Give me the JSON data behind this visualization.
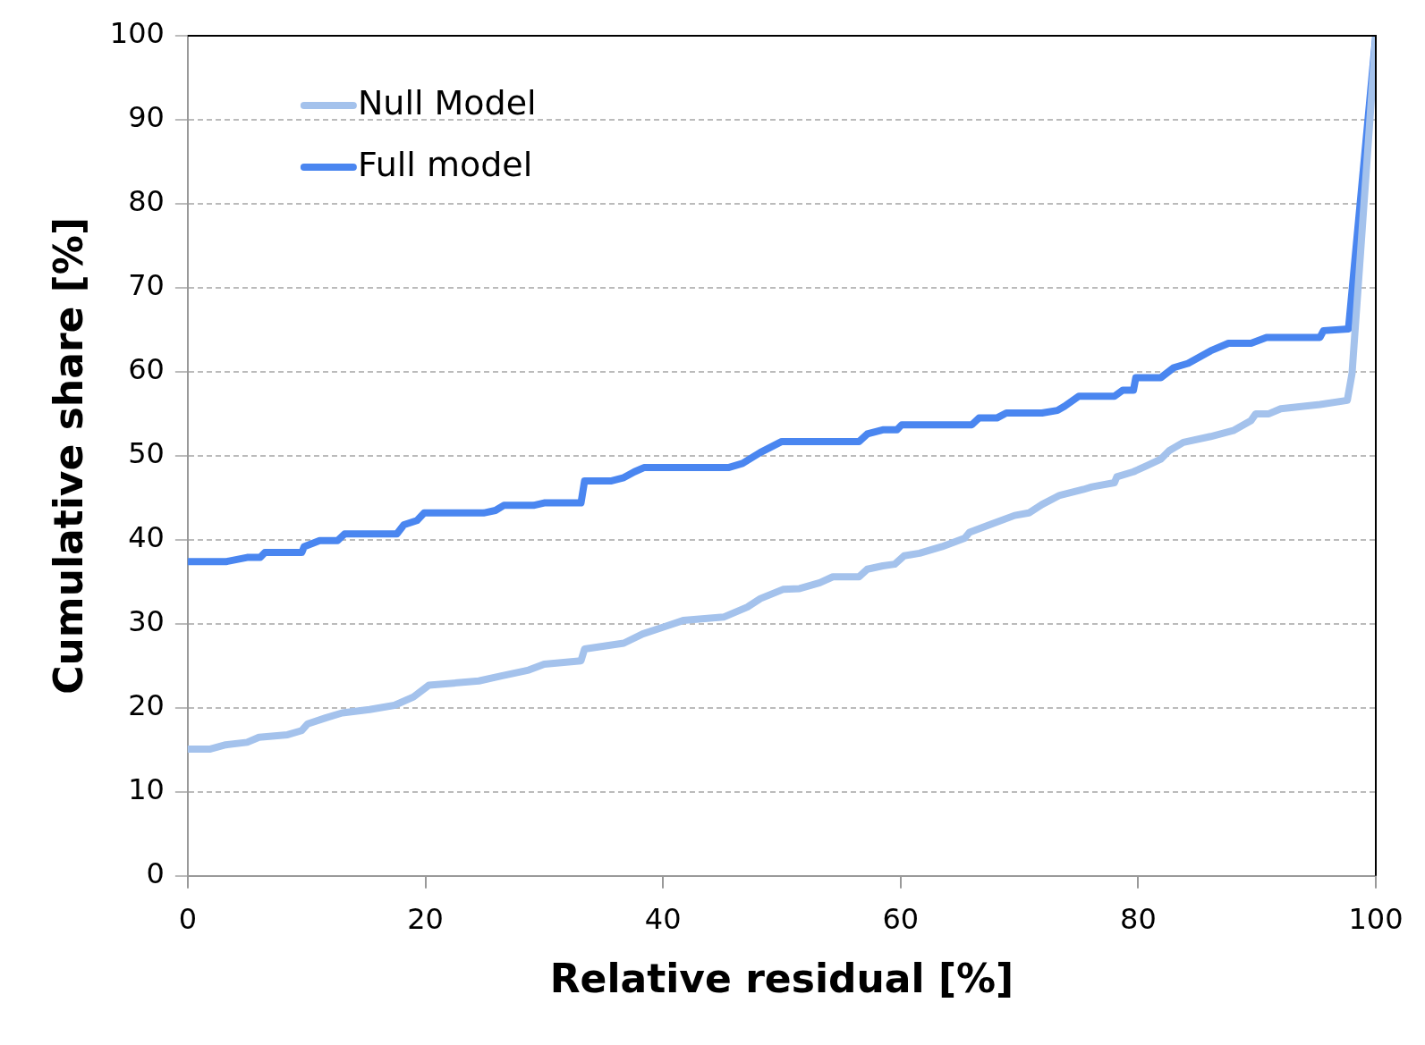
{
  "chart_data": {
    "type": "line",
    "xlabel": "Relative residual [%]",
    "ylabel": "Cumulative share [%]",
    "xlim": [
      0,
      100
    ],
    "xticks": [
      0,
      20,
      40,
      60,
      80,
      100
    ],
    "ylim": [
      0,
      100
    ],
    "yticks": [
      0,
      10,
      20,
      30,
      40,
      50,
      60,
      70,
      80,
      90,
      100
    ],
    "grid": "y",
    "legend": "top left",
    "marker": "none",
    "line_style": "solid",
    "series": [
      {
        "name": "Null Model",
        "color": "#a4c2ec",
        "x": [
          0,
          1.9,
          3.2,
          5,
          6,
          8.4,
          9.6,
          10.1,
          11.6,
          13,
          15.3,
          17.4,
          19,
          20.3,
          24.5,
          26.4,
          28.7,
          30,
          33.1,
          33.4,
          36.7,
          38.3,
          40.2,
          41.7,
          45.1,
          47.1,
          48.2,
          50.1,
          51.5,
          53.2,
          54.3,
          56.5,
          57.2,
          58.5,
          59.5,
          60.3,
          61.6,
          63.5,
          65.4,
          65.8,
          67.7,
          69.6,
          70.8,
          71.9,
          73.4,
          75.4,
          76.1,
          78,
          78.2,
          79.6,
          80.7,
          81.9,
          82.6,
          83.8,
          86.1,
          88,
          89.5,
          89.9,
          91,
          92,
          95.3,
          97.6,
          98,
          100
        ],
        "values": [
          15.1,
          15.1,
          15.6,
          15.9,
          16.5,
          16.8,
          17.3,
          18.1,
          18.8,
          19.4,
          19.8,
          20.3,
          21.3,
          22.7,
          23.2,
          23.8,
          24.5,
          25.2,
          25.6,
          27,
          27.7,
          28.8,
          29.7,
          30.4,
          30.8,
          32,
          33,
          34.1,
          34.2,
          34.9,
          35.6,
          35.6,
          36.5,
          36.9,
          37.1,
          38.1,
          38.4,
          39.2,
          40.2,
          40.9,
          41.9,
          42.9,
          43.2,
          44.2,
          45.3,
          46,
          46.3,
          46.8,
          47.5,
          48.1,
          48.8,
          49.6,
          50.6,
          51.6,
          52.3,
          53,
          54.2,
          55,
          55,
          55.6,
          56.1,
          56.6,
          59.8,
          100
        ]
      },
      {
        "name": "Full model",
        "color": "#4a86f0",
        "x": [
          0,
          3.2,
          5,
          6.1,
          6.5,
          9.6,
          9.8,
          11.1,
          12.6,
          13.2,
          17.6,
          18.2,
          19.3,
          19.9,
          24.9,
          25.9,
          26.6,
          29.1,
          30,
          33.1,
          33.4,
          35.6,
          36.7,
          37.6,
          38.4,
          45.5,
          46.7,
          48.2,
          50,
          56.5,
          57.2,
          58.5,
          59.7,
          60.1,
          66,
          66.6,
          68.1,
          68.9,
          71.9,
          73.2,
          73.8,
          75,
          78,
          78.7,
          79.6,
          79.8,
          81.9,
          83,
          84.2,
          86.1,
          87.6,
          89.5,
          90.8,
          95.3,
          95.6,
          97.7,
          100
        ],
        "values": [
          37.4,
          37.4,
          37.9,
          37.9,
          38.5,
          38.5,
          39.2,
          39.9,
          39.9,
          40.7,
          40.7,
          41.8,
          42.3,
          43.2,
          43.2,
          43.5,
          44.1,
          44.1,
          44.4,
          44.4,
          47,
          47,
          47.4,
          48.1,
          48.6,
          48.6,
          49.1,
          50.4,
          51.7,
          51.7,
          52.6,
          53.1,
          53.1,
          53.7,
          53.7,
          54.5,
          54.5,
          55.1,
          55.1,
          55.4,
          55.9,
          57.1,
          57.1,
          57.8,
          57.8,
          59.3,
          59.3,
          60.5,
          61,
          62.5,
          63.4,
          63.4,
          64.1,
          64.1,
          64.9,
          65.1,
          100
        ]
      }
    ]
  }
}
